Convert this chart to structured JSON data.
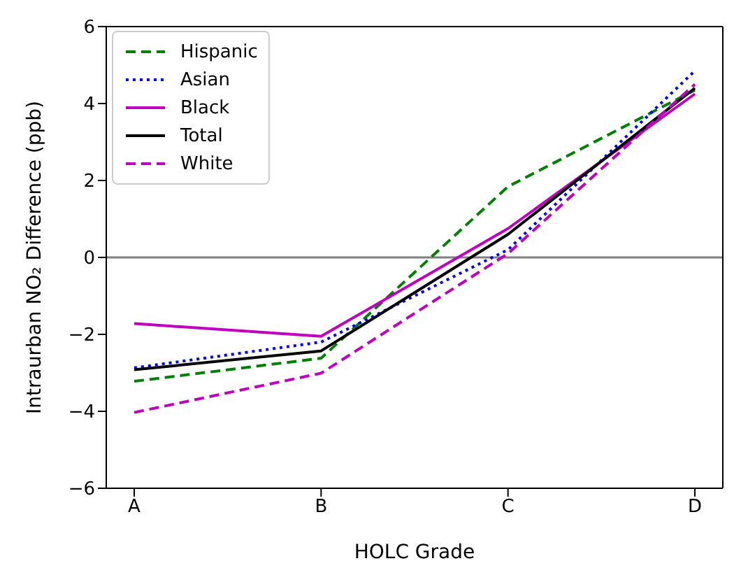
{
  "chart_data": {
    "type": "line",
    "xlabel": "HOLC Grade",
    "ylabel": "Intraurban NO₂ Difference (ppb)",
    "categories": [
      "A",
      "B",
      "C",
      "D"
    ],
    "ylim": [
      -6,
      6
    ],
    "yticks": [
      -6,
      -4,
      -2,
      0,
      2,
      4,
      6
    ],
    "grid": false,
    "legend": "top left",
    "marker": "none",
    "ref_lines": [
      {
        "axis": "y",
        "value": 0,
        "color": "#808080"
      }
    ],
    "series": [
      {
        "name": "Hispanic",
        "color": "#008000",
        "line_style": "dashed",
        "values": [
          -3.22,
          -2.62,
          1.84,
          4.35
        ]
      },
      {
        "name": "Asian",
        "color": "#0000ff",
        "line_style": "dotted",
        "values": [
          -2.87,
          -2.2,
          0.2,
          4.85
        ]
      },
      {
        "name": "Black",
        "color": "#bf00bf",
        "line_style": "solid",
        "values": [
          -1.72,
          -2.05,
          0.75,
          4.25
        ]
      },
      {
        "name": "Total",
        "color": "#000000",
        "line_style": "solid",
        "values": [
          -2.92,
          -2.43,
          0.6,
          4.4
        ]
      },
      {
        "name": "White",
        "color": "#bf00bf",
        "line_style": "dashed",
        "values": [
          -4.03,
          -3.01,
          0.1,
          4.5
        ]
      }
    ]
  }
}
